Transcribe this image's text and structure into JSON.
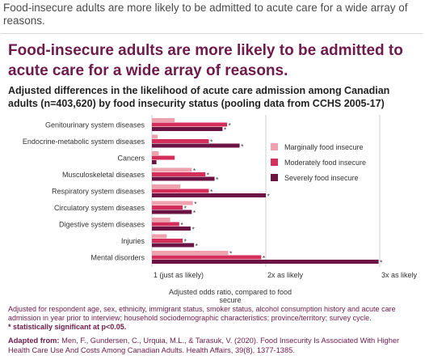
{
  "caption": "Food-insecure adults are more likely to be admitted to acute care for a wide array of reasons.",
  "headline": "Food-insecure adults are more likely to be admitted to acute care for a wide array of reasons.",
  "subtitle": "Adjusted differences in the likelihood of acute care admission among Canadian adults (n=403,620) by food insecurity status (pooling data from CCHS 2005-17)",
  "footnote": "Adjusted for respondent age, sex, ethnicity, immigrant status, smoker status, alcohol consumption history and acute care admission in year prior to interview; household sociodemographic characteristics; province/territory; survey cycle.",
  "significance_note": "* statistically significant at p<0.05.",
  "source_label": "Adapted from:",
  "source_text": "Men, F., Gundersen, C., Urquia, M.L., & Tarasuk, V. (2020). Food Insecurity Is Associated With Higher Health Care Use And Costs Among Canadian Adults. Health Affairs, 39(8), 1377-1385.",
  "colors": {
    "marginal": "#eda2ad",
    "moderate": "#d42e5a",
    "severe": "#6b1444",
    "accent": "#6e1a4b",
    "gridline": "#cfcfcf"
  },
  "chart_data": {
    "type": "bar",
    "orientation": "horizontal",
    "xlabel": "Adjusted odds ratio, compared to food secure",
    "xlim": [
      1,
      3.1
    ],
    "xticks": [
      1,
      2,
      3
    ],
    "xtick_labels": [
      "1 (just as likely)",
      "2x as likely",
      "3x as likely"
    ],
    "grid": true,
    "legend_position": "right",
    "categories": [
      "Genitourinary system diseases",
      "Endocrine-metabolic system diseases",
      "Cancers",
      "Musculoskeletal diseases",
      "Respiratory system diseases",
      "Circulatory system diseases",
      "Digestive system diseases",
      "Injuries",
      "Mental disorders"
    ],
    "series": [
      {
        "name": "Marginally food insecure",
        "values": [
          1.2,
          1.05,
          1.06,
          1.35,
          1.25,
          1.36,
          1.16,
          1.13,
          1.67
        ],
        "significant": [
          false,
          false,
          false,
          true,
          false,
          true,
          false,
          false,
          true
        ]
      },
      {
        "name": "Moderately food insecure",
        "values": [
          1.66,
          1.5,
          1.2,
          1.47,
          1.5,
          1.27,
          1.24,
          1.27,
          1.96
        ],
        "significant": [
          true,
          true,
          false,
          true,
          true,
          true,
          true,
          true,
          true
        ]
      },
      {
        "name": "Severely food insecure",
        "values": [
          1.62,
          1.77,
          1.04,
          1.55,
          2.0,
          1.35,
          1.34,
          1.37,
          2.99
        ],
        "significant": [
          true,
          true,
          false,
          true,
          true,
          true,
          true,
          true,
          true
        ]
      }
    ]
  }
}
